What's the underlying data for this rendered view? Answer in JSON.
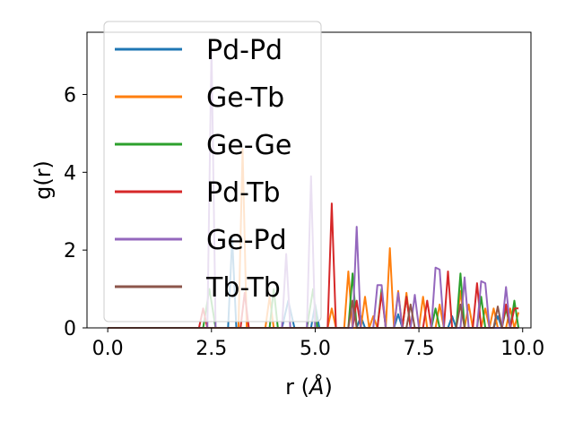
{
  "chart_data": {
    "type": "line",
    "title": "",
    "xlabel": "r (",
    "xlabel_unit": "Å",
    "xlabel_close": ")",
    "ylabel": "g(r)",
    "xlim": [
      -0.5,
      10.2
    ],
    "ylim": [
      0,
      7.6
    ],
    "xticks": [
      0.0,
      2.5,
      5.0,
      7.5,
      10.0
    ],
    "xtick_labels": [
      "0.0",
      "2.5",
      "5.0",
      "7.5",
      "10.0"
    ],
    "yticks": [
      0,
      2,
      4,
      6
    ],
    "ytick_labels": [
      "0",
      "2",
      "4",
      "6"
    ],
    "grid": false,
    "legend_position": "upper-left",
    "series": [
      {
        "name": "Pd-Pd",
        "color": "#1f77b4",
        "points": [
          [
            0,
            0
          ],
          [
            2.9,
            0
          ],
          [
            3.0,
            2.3
          ],
          [
            3.1,
            0
          ],
          [
            4.2,
            0
          ],
          [
            4.35,
            0.7
          ],
          [
            4.5,
            0
          ],
          [
            4.9,
            0
          ],
          [
            5.0,
            0.6
          ],
          [
            5.1,
            0
          ],
          [
            6.0,
            0
          ],
          [
            6.1,
            0.3
          ],
          [
            6.2,
            0
          ],
          [
            6.9,
            0
          ],
          [
            7.0,
            0.35
          ],
          [
            7.1,
            0
          ],
          [
            8.2,
            0
          ],
          [
            8.3,
            0.3
          ],
          [
            8.4,
            0
          ],
          [
            9.3,
            0
          ],
          [
            9.4,
            0.3
          ],
          [
            9.5,
            0
          ],
          [
            9.9,
            0
          ]
        ]
      },
      {
        "name": "Ge-Tb",
        "color": "#ff7f0e",
        "points": [
          [
            0,
            0
          ],
          [
            3.15,
            0
          ],
          [
            3.25,
            4.6
          ],
          [
            3.35,
            0
          ],
          [
            3.8,
            0
          ],
          [
            3.9,
            0.8
          ],
          [
            4.0,
            0
          ],
          [
            5.3,
            0
          ],
          [
            5.4,
            0.5
          ],
          [
            5.5,
            0
          ],
          [
            5.7,
            0
          ],
          [
            5.8,
            1.45
          ],
          [
            5.9,
            0
          ],
          [
            6.1,
            0
          ],
          [
            6.2,
            0.8
          ],
          [
            6.3,
            0
          ],
          [
            6.4,
            0.3
          ],
          [
            6.5,
            0
          ],
          [
            6.7,
            0
          ],
          [
            6.8,
            2.05
          ],
          [
            6.9,
            0
          ],
          [
            7.0,
            0.95
          ],
          [
            7.1,
            0
          ],
          [
            7.2,
            0.9
          ],
          [
            7.3,
            0
          ],
          [
            7.5,
            0
          ],
          [
            7.6,
            0.8
          ],
          [
            7.7,
            0
          ],
          [
            7.9,
            0
          ],
          [
            8.0,
            0.6
          ],
          [
            8.1,
            0
          ],
          [
            8.4,
            0
          ],
          [
            8.5,
            0.95
          ],
          [
            8.6,
            0
          ],
          [
            8.7,
            0.6
          ],
          [
            8.8,
            0
          ],
          [
            9.0,
            0
          ],
          [
            9.1,
            0.5
          ],
          [
            9.2,
            0
          ],
          [
            9.3,
            0.5
          ],
          [
            9.4,
            0
          ],
          [
            9.6,
            0
          ],
          [
            9.7,
            0.5
          ],
          [
            9.8,
            0
          ],
          [
            9.9,
            0.4
          ]
        ]
      },
      {
        "name": "Ge-Ge",
        "color": "#2ca02c",
        "points": [
          [
            0,
            0
          ],
          [
            2.3,
            0
          ],
          [
            2.45,
            1.0
          ],
          [
            2.6,
            0
          ],
          [
            3.9,
            0
          ],
          [
            4.0,
            1.0
          ],
          [
            4.1,
            0
          ],
          [
            4.8,
            0
          ],
          [
            4.95,
            1.0
          ],
          [
            5.05,
            0
          ],
          [
            5.8,
            0
          ],
          [
            5.9,
            1.4
          ],
          [
            6.0,
            0
          ],
          [
            6.5,
            0
          ],
          [
            6.6,
            1.0
          ],
          [
            6.7,
            0
          ],
          [
            7.1,
            0
          ],
          [
            7.2,
            0.8
          ],
          [
            7.3,
            0
          ],
          [
            7.8,
            0
          ],
          [
            7.9,
            0.5
          ],
          [
            8.0,
            0
          ],
          [
            8.4,
            0
          ],
          [
            8.5,
            1.4
          ],
          [
            8.6,
            0
          ],
          [
            8.9,
            0
          ],
          [
            9.0,
            0.8
          ],
          [
            9.1,
            0
          ],
          [
            9.5,
            0
          ],
          [
            9.6,
            0.5
          ],
          [
            9.7,
            0
          ],
          [
            9.8,
            0.7
          ],
          [
            9.9,
            0
          ]
        ]
      },
      {
        "name": "Pd-Tb",
        "color": "#d62728",
        "points": [
          [
            0,
            0
          ],
          [
            2.2,
            0
          ],
          [
            2.3,
            0.5
          ],
          [
            2.4,
            0
          ],
          [
            3.2,
            0
          ],
          [
            3.3,
            0.9
          ],
          [
            3.4,
            0
          ],
          [
            5.3,
            0
          ],
          [
            5.4,
            3.2
          ],
          [
            5.5,
            0
          ],
          [
            5.9,
            0
          ],
          [
            6.0,
            0.7
          ],
          [
            6.1,
            0
          ],
          [
            6.5,
            0
          ],
          [
            6.6,
            0.9
          ],
          [
            6.7,
            0
          ],
          [
            7.1,
            0
          ],
          [
            7.2,
            0.8
          ],
          [
            7.3,
            0
          ],
          [
            7.6,
            0
          ],
          [
            7.7,
            0.7
          ],
          [
            7.8,
            0
          ],
          [
            8.1,
            0
          ],
          [
            8.2,
            1.45
          ],
          [
            8.3,
            0
          ],
          [
            8.8,
            0
          ],
          [
            8.9,
            1.15
          ],
          [
            9.0,
            0
          ],
          [
            9.5,
            0
          ],
          [
            9.6,
            0.6
          ],
          [
            9.7,
            0
          ],
          [
            9.8,
            0.5
          ],
          [
            9.9,
            0.5
          ]
        ]
      },
      {
        "name": "Ge-Pd",
        "color": "#9467bd",
        "points": [
          [
            0,
            0
          ],
          [
            2.4,
            0
          ],
          [
            2.5,
            7.2
          ],
          [
            2.6,
            0
          ],
          [
            4.2,
            0
          ],
          [
            4.3,
            1.9
          ],
          [
            4.4,
            0
          ],
          [
            4.8,
            0
          ],
          [
            4.9,
            3.9
          ],
          [
            5.0,
            0
          ],
          [
            5.9,
            0
          ],
          [
            6.0,
            2.6
          ],
          [
            6.1,
            0
          ],
          [
            6.4,
            0
          ],
          [
            6.5,
            1.1
          ],
          [
            6.6,
            1.1
          ],
          [
            6.7,
            0
          ],
          [
            6.9,
            0
          ],
          [
            7.0,
            0.9
          ],
          [
            7.1,
            0
          ],
          [
            7.3,
            0
          ],
          [
            7.4,
            0.85
          ],
          [
            7.5,
            0
          ],
          [
            7.8,
            0
          ],
          [
            7.9,
            1.55
          ],
          [
            8.0,
            1.5
          ],
          [
            8.1,
            0
          ],
          [
            8.5,
            0
          ],
          [
            8.6,
            1.3
          ],
          [
            8.7,
            0
          ],
          [
            8.9,
            0
          ],
          [
            9.0,
            1.2
          ],
          [
            9.1,
            1.15
          ],
          [
            9.2,
            0
          ],
          [
            9.5,
            0
          ],
          [
            9.6,
            1.05
          ],
          [
            9.7,
            0
          ],
          [
            9.9,
            0
          ]
        ]
      },
      {
        "name": "Tb-Tb",
        "color": "#8c564b",
        "points": [
          [
            0,
            0
          ],
          [
            5.8,
            0
          ],
          [
            5.9,
            0.7
          ],
          [
            6.0,
            0
          ],
          [
            7.2,
            0
          ],
          [
            7.3,
            0.6
          ],
          [
            7.4,
            0
          ],
          [
            8.4,
            0
          ],
          [
            8.5,
            0.6
          ],
          [
            8.6,
            0
          ],
          [
            9.3,
            0
          ],
          [
            9.4,
            0.55
          ],
          [
            9.5,
            0
          ],
          [
            9.9,
            0
          ]
        ]
      }
    ]
  }
}
